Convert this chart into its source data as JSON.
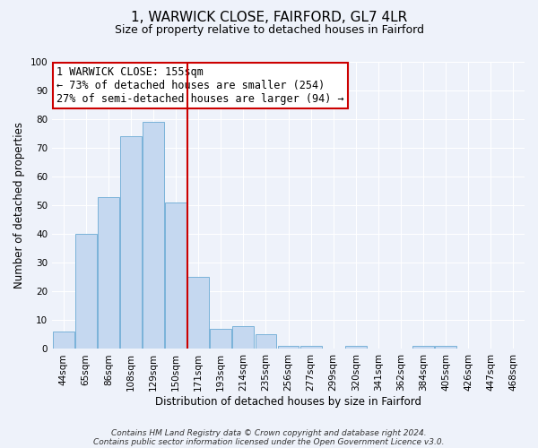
{
  "title": "1, WARWICK CLOSE, FAIRFORD, GL7 4LR",
  "subtitle": "Size of property relative to detached houses in Fairford",
  "xlabel": "Distribution of detached houses by size in Fairford",
  "ylabel": "Number of detached properties",
  "bar_labels": [
    "44sqm",
    "65sqm",
    "86sqm",
    "108sqm",
    "129sqm",
    "150sqm",
    "171sqm",
    "193sqm",
    "214sqm",
    "235sqm",
    "256sqm",
    "277sqm",
    "299sqm",
    "320sqm",
    "341sqm",
    "362sqm",
    "384sqm",
    "405sqm",
    "426sqm",
    "447sqm",
    "468sqm"
  ],
  "bar_values": [
    6,
    40,
    53,
    74,
    79,
    51,
    25,
    7,
    8,
    5,
    1,
    1,
    0,
    1,
    0,
    0,
    1,
    1,
    0,
    0,
    0
  ],
  "bar_color": "#c5d8f0",
  "bar_edgecolor": "#6aaad4",
  "bar_width": 0.95,
  "vline_index": 5,
  "vline_color": "#cc0000",
  "ylim": [
    0,
    100
  ],
  "yticks": [
    0,
    10,
    20,
    30,
    40,
    50,
    60,
    70,
    80,
    90,
    100
  ],
  "annotation_title": "1 WARWICK CLOSE: 155sqm",
  "annotation_line1": "← 73% of detached houses are smaller (254)",
  "annotation_line2": "27% of semi-detached houses are larger (94) →",
  "annotation_box_facecolor": "#ffffff",
  "annotation_box_edgecolor": "#cc0000",
  "footer_line1": "Contains HM Land Registry data © Crown copyright and database right 2024.",
  "footer_line2": "Contains public sector information licensed under the Open Government Licence v3.0.",
  "background_color": "#eef2fa",
  "grid_color": "#ffffff",
  "title_fontsize": 11,
  "subtitle_fontsize": 9,
  "axis_label_fontsize": 8.5,
  "tick_fontsize": 7.5,
  "annotation_fontsize": 8.5,
  "footer_fontsize": 6.5
}
